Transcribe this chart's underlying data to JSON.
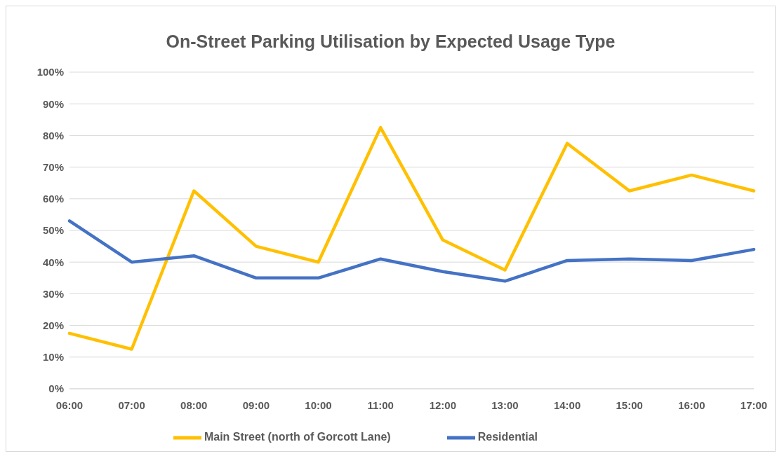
{
  "chart_data": {
    "type": "line",
    "title": "On-Street Parking Utilisation by Expected Usage Type",
    "categories": [
      "06:00",
      "07:00",
      "08:00",
      "09:00",
      "10:00",
      "11:00",
      "12:00",
      "13:00",
      "14:00",
      "15:00",
      "16:00",
      "17:00"
    ],
    "series": [
      {
        "name": "Main Street (north of Gorcott Lane)",
        "color": "#ffc000",
        "values": [
          17.5,
          12.5,
          62.5,
          45,
          40,
          82.5,
          47,
          37.5,
          77.5,
          62.5,
          67.5,
          62.5
        ]
      },
      {
        "name": "Residential",
        "color": "#4472c4",
        "values": [
          53,
          40,
          42,
          35,
          35,
          41,
          37,
          34,
          40.5,
          41,
          40.5,
          44
        ]
      }
    ],
    "ylim": [
      0,
      100
    ],
    "yticks": [
      {
        "value": 0,
        "label": "0%"
      },
      {
        "value": 10,
        "label": "10%"
      },
      {
        "value": 20,
        "label": "20%"
      },
      {
        "value": 30,
        "label": "30%"
      },
      {
        "value": 40,
        "label": "40%"
      },
      {
        "value": 50,
        "label": "50%"
      },
      {
        "value": 60,
        "label": "60%"
      },
      {
        "value": 70,
        "label": "70%"
      },
      {
        "value": 80,
        "label": "80%"
      },
      {
        "value": 90,
        "label": "90%"
      },
      {
        "value": 100,
        "label": "100%"
      }
    ],
    "grid": "y",
    "legend": "bottom",
    "marker": "none",
    "line_style": "solid"
  }
}
